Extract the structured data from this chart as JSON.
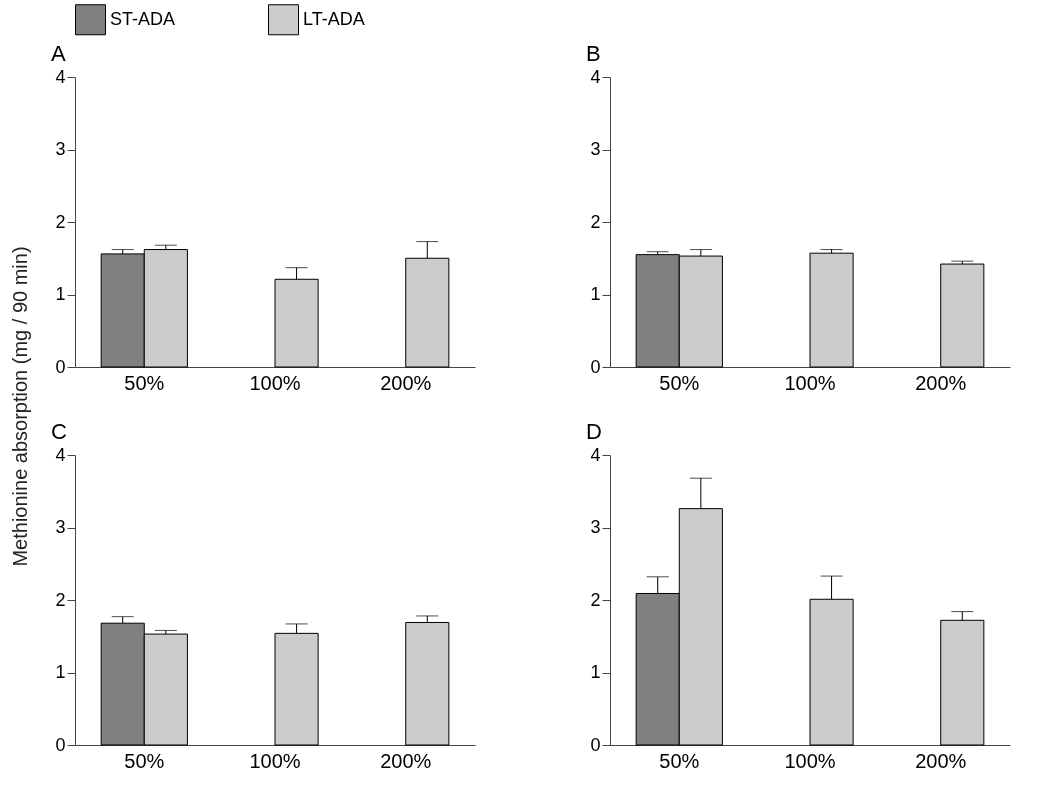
{
  "chart_data": [
    {
      "type": "bar",
      "title": "A",
      "ylabel": "Methionine absorption  (mg / 90 min)",
      "categories": [
        "50%",
        "100%",
        "200%"
      ],
      "ylim": [
        0,
        4
      ],
      "yticks": [
        0,
        1,
        2,
        3,
        4
      ],
      "legend": "top",
      "series": [
        {
          "name": "ST-ADA",
          "color": "#808080",
          "values": [
            1.56,
            null,
            null
          ],
          "errors": [
            [
              1.56,
              1.62
            ],
            null,
            null
          ]
        },
        {
          "name": "LT-ADA",
          "color": "#cccccc",
          "values": [
            1.62,
            1.21,
            1.5
          ],
          "errors": [
            [
              1.62,
              1.68
            ],
            [
              1.21,
              1.37
            ],
            [
              1.5,
              1.73
            ]
          ]
        }
      ]
    },
    {
      "type": "bar",
      "title": "B",
      "categories": [
        "50%",
        "100%",
        "200%"
      ],
      "ylim": [
        0,
        4
      ],
      "yticks": [
        0,
        1,
        2,
        3,
        4
      ],
      "series": [
        {
          "name": "ST-ADA",
          "color": "#808080",
          "values": [
            1.55,
            null,
            null
          ],
          "errors": [
            [
              1.55,
              1.59
            ],
            null,
            null
          ]
        },
        {
          "name": "LT-ADA",
          "color": "#cccccc",
          "values": [
            1.53,
            1.57,
            1.42
          ],
          "errors": [
            [
              1.53,
              1.62
            ],
            [
              1.57,
              1.62
            ],
            [
              1.42,
              1.46
            ]
          ]
        }
      ]
    },
    {
      "type": "bar",
      "title": "C",
      "categories": [
        "50%",
        "100%",
        "200%"
      ],
      "ylim": [
        0,
        4
      ],
      "yticks": [
        0,
        1,
        2,
        3,
        4
      ],
      "series": [
        {
          "name": "ST-ADA",
          "color": "#808080",
          "values": [
            1.68,
            null,
            null
          ],
          "errors": [
            [
              1.68,
              1.77
            ],
            null,
            null
          ]
        },
        {
          "name": "LT-ADA",
          "color": "#cccccc",
          "values": [
            1.53,
            1.54,
            1.69
          ],
          "errors": [
            [
              1.53,
              1.58
            ],
            [
              1.54,
              1.67
            ],
            [
              1.69,
              1.78
            ]
          ]
        }
      ]
    },
    {
      "type": "bar",
      "title": "D",
      "categories": [
        "50%",
        "100%",
        "200%"
      ],
      "ylim": [
        0,
        4
      ],
      "yticks": [
        0,
        1,
        2,
        3,
        4
      ],
      "series": [
        {
          "name": "ST-ADA",
          "color": "#808080",
          "values": [
            2.09,
            null,
            null
          ],
          "errors": [
            [
              2.09,
              2.32
            ],
            null,
            null
          ]
        },
        {
          "name": "LT-ADA",
          "color": "#cccccc",
          "values": [
            3.26,
            2.01,
            1.72
          ],
          "errors": [
            [
              3.26,
              3.68
            ],
            [
              2.01,
              2.33
            ],
            [
              1.72,
              1.84
            ]
          ]
        }
      ]
    }
  ]
}
